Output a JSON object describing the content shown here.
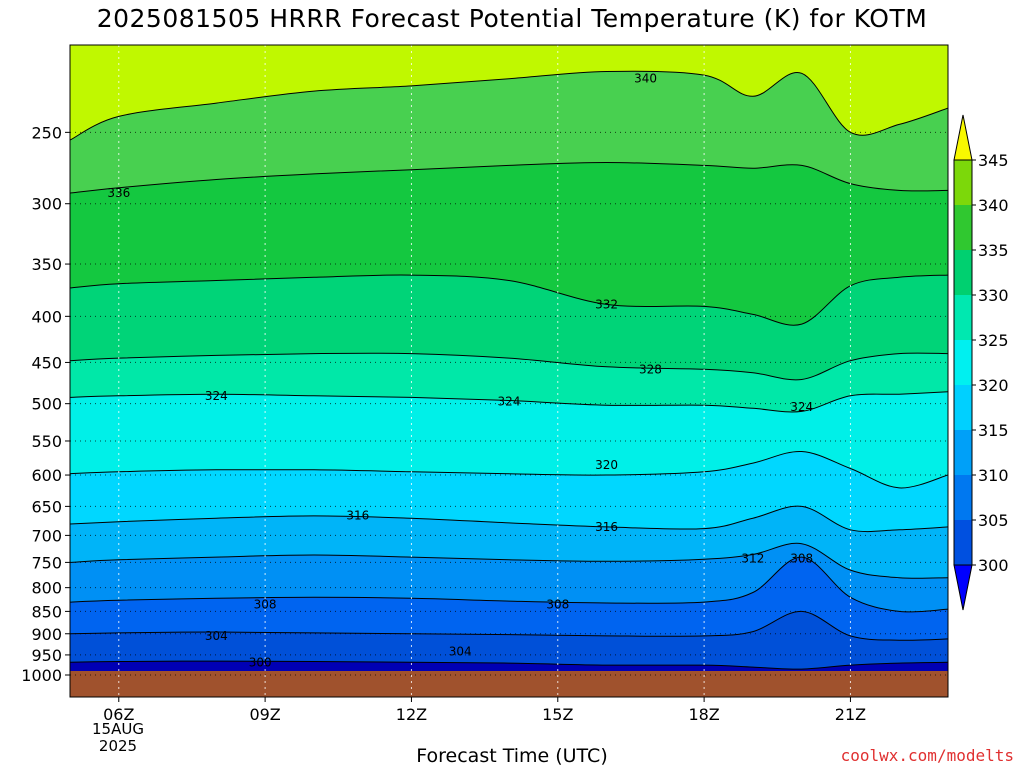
{
  "title": "2025081505 HRRR Forecast Potential Temperature (K) for KOTM",
  "xlabel": "Forecast Time (UTC)",
  "credit": "coolwx.com/modelts",
  "date_label": {
    "line1": "15AUG",
    "line2": "2025"
  },
  "colors": {
    "ground": "#a0522d",
    "bands": [
      "#0000b4",
      "#0050d8",
      "#0064f0",
      "#0090f4",
      "#00b4f8",
      "#00d7ff",
      "#00f0e8",
      "#00e8a8",
      "#00d478",
      "#14c840",
      "#48d050",
      "#7cd80a",
      "#a8ec0a",
      "#c0f800",
      "#f8f800"
    ],
    "colorbar": [
      "#0000ff",
      "#0050e0",
      "#0078f0",
      "#00a0f8",
      "#00d0ff",
      "#00f0f0",
      "#00e8b0",
      "#00d070",
      "#30c830",
      "#7cd80a",
      "#b4f000",
      "#f8f800"
    ]
  },
  "chart_data": {
    "type": "heatmap",
    "title": "2025081505 HRRR Forecast Potential Temperature (K) for KOTM",
    "xlabel": "Forecast Time (UTC)",
    "ylabel": "",
    "x_ticks": [
      "06Z",
      "09Z",
      "12Z",
      "15Z",
      "18Z",
      "21Z"
    ],
    "x_hours": [
      6,
      9,
      12,
      15,
      18,
      21
    ],
    "xlim": [
      5,
      23
    ],
    "y_ticks": [
      250,
      300,
      350,
      400,
      450,
      500,
      550,
      600,
      650,
      700,
      750,
      800,
      850,
      900,
      950,
      1000
    ],
    "ylim_hpa": [
      200,
      1000
    ],
    "y_scale": "log",
    "grid": true,
    "colorbar_ticks": [
      300,
      305,
      310,
      315,
      320,
      325,
      330,
      335,
      340,
      345
    ],
    "contour_interval": 4,
    "contour_labels": [
      {
        "value": "340",
        "hour": 16.8,
        "hpa": 218
      },
      {
        "value": "336",
        "hour": 6.0,
        "hpa": 292
      },
      {
        "value": "332",
        "hour": 16.0,
        "hpa": 388
      },
      {
        "value": "328",
        "hour": 16.9,
        "hpa": 458
      },
      {
        "value": "324",
        "hour": 8.0,
        "hpa": 490
      },
      {
        "value": "324",
        "hour": 14.0,
        "hpa": 497
      },
      {
        "value": "324",
        "hour": 20.0,
        "hpa": 504
      },
      {
        "value": "320",
        "hour": 16.0,
        "hpa": 585
      },
      {
        "value": "316",
        "hour": 10.9,
        "hpa": 665
      },
      {
        "value": "316",
        "hour": 16.0,
        "hpa": 685
      },
      {
        "value": "312",
        "hour": 19.0,
        "hpa": 743
      },
      {
        "value": "308",
        "hour": 20.0,
        "hpa": 743
      },
      {
        "value": "308",
        "hour": 9.0,
        "hpa": 835
      },
      {
        "value": "308",
        "hour": 15.0,
        "hpa": 835
      },
      {
        "value": "304",
        "hour": 8.0,
        "hpa": 905
      },
      {
        "value": "304",
        "hour": 13.0,
        "hpa": 942
      },
      {
        "value": "300",
        "hour": 8.9,
        "hpa": 968
      }
    ],
    "profile_hours": [
      5,
      6,
      8,
      10,
      12,
      14,
      16,
      18,
      19,
      20,
      21,
      22,
      23
    ],
    "isentrope_pressure_hpa": [
      {
        "theta": 340,
        "hpa": [
          255,
          240,
          232,
          225,
          222,
          218,
          214,
          216,
          228,
          215,
          250,
          245,
          235
        ]
      },
      {
        "theta": 336,
        "hpa": [
          292,
          288,
          282,
          278,
          275,
          272,
          270,
          272,
          274,
          272,
          285,
          290,
          290
        ]
      },
      {
        "theta": 332,
        "hpa": [
          372,
          368,
          365,
          362,
          360,
          365,
          388,
          390,
          398,
          408,
          370,
          362,
          360
        ]
      },
      {
        "theta": 328,
        "hpa": [
          448,
          445,
          442,
          440,
          440,
          445,
          455,
          458,
          462,
          470,
          448,
          440,
          440
        ]
      },
      {
        "theta": 324,
        "hpa": [
          492,
          490,
          488,
          490,
          492,
          496,
          502,
          502,
          506,
          510,
          490,
          488,
          485
        ]
      },
      {
        "theta": 320,
        "hpa": [
          598,
          595,
          592,
          592,
          595,
          598,
          600,
          595,
          582,
          565,
          590,
          620,
          600
        ]
      },
      {
        "theta": 316,
        "hpa": [
          680,
          676,
          670,
          666,
          670,
          678,
          685,
          688,
          670,
          650,
          690,
          690,
          685
        ]
      },
      {
        "theta": 312,
        "hpa": [
          750,
          745,
          740,
          736,
          740,
          745,
          748,
          744,
          735,
          715,
          765,
          780,
          780
        ]
      },
      {
        "theta": 308,
        "hpa": [
          830,
          826,
          822,
          820,
          822,
          828,
          832,
          830,
          810,
          740,
          820,
          850,
          845
        ]
      },
      {
        "theta": 304,
        "hpa": [
          900,
          898,
          896,
          898,
          900,
          902,
          905,
          905,
          895,
          850,
          905,
          915,
          912
        ]
      },
      {
        "theta": 300,
        "hpa": [
          968,
          966,
          965,
          966,
          968,
          970,
          975,
          975,
          980,
          985,
          975,
          970,
          968
        ]
      }
    ]
  }
}
